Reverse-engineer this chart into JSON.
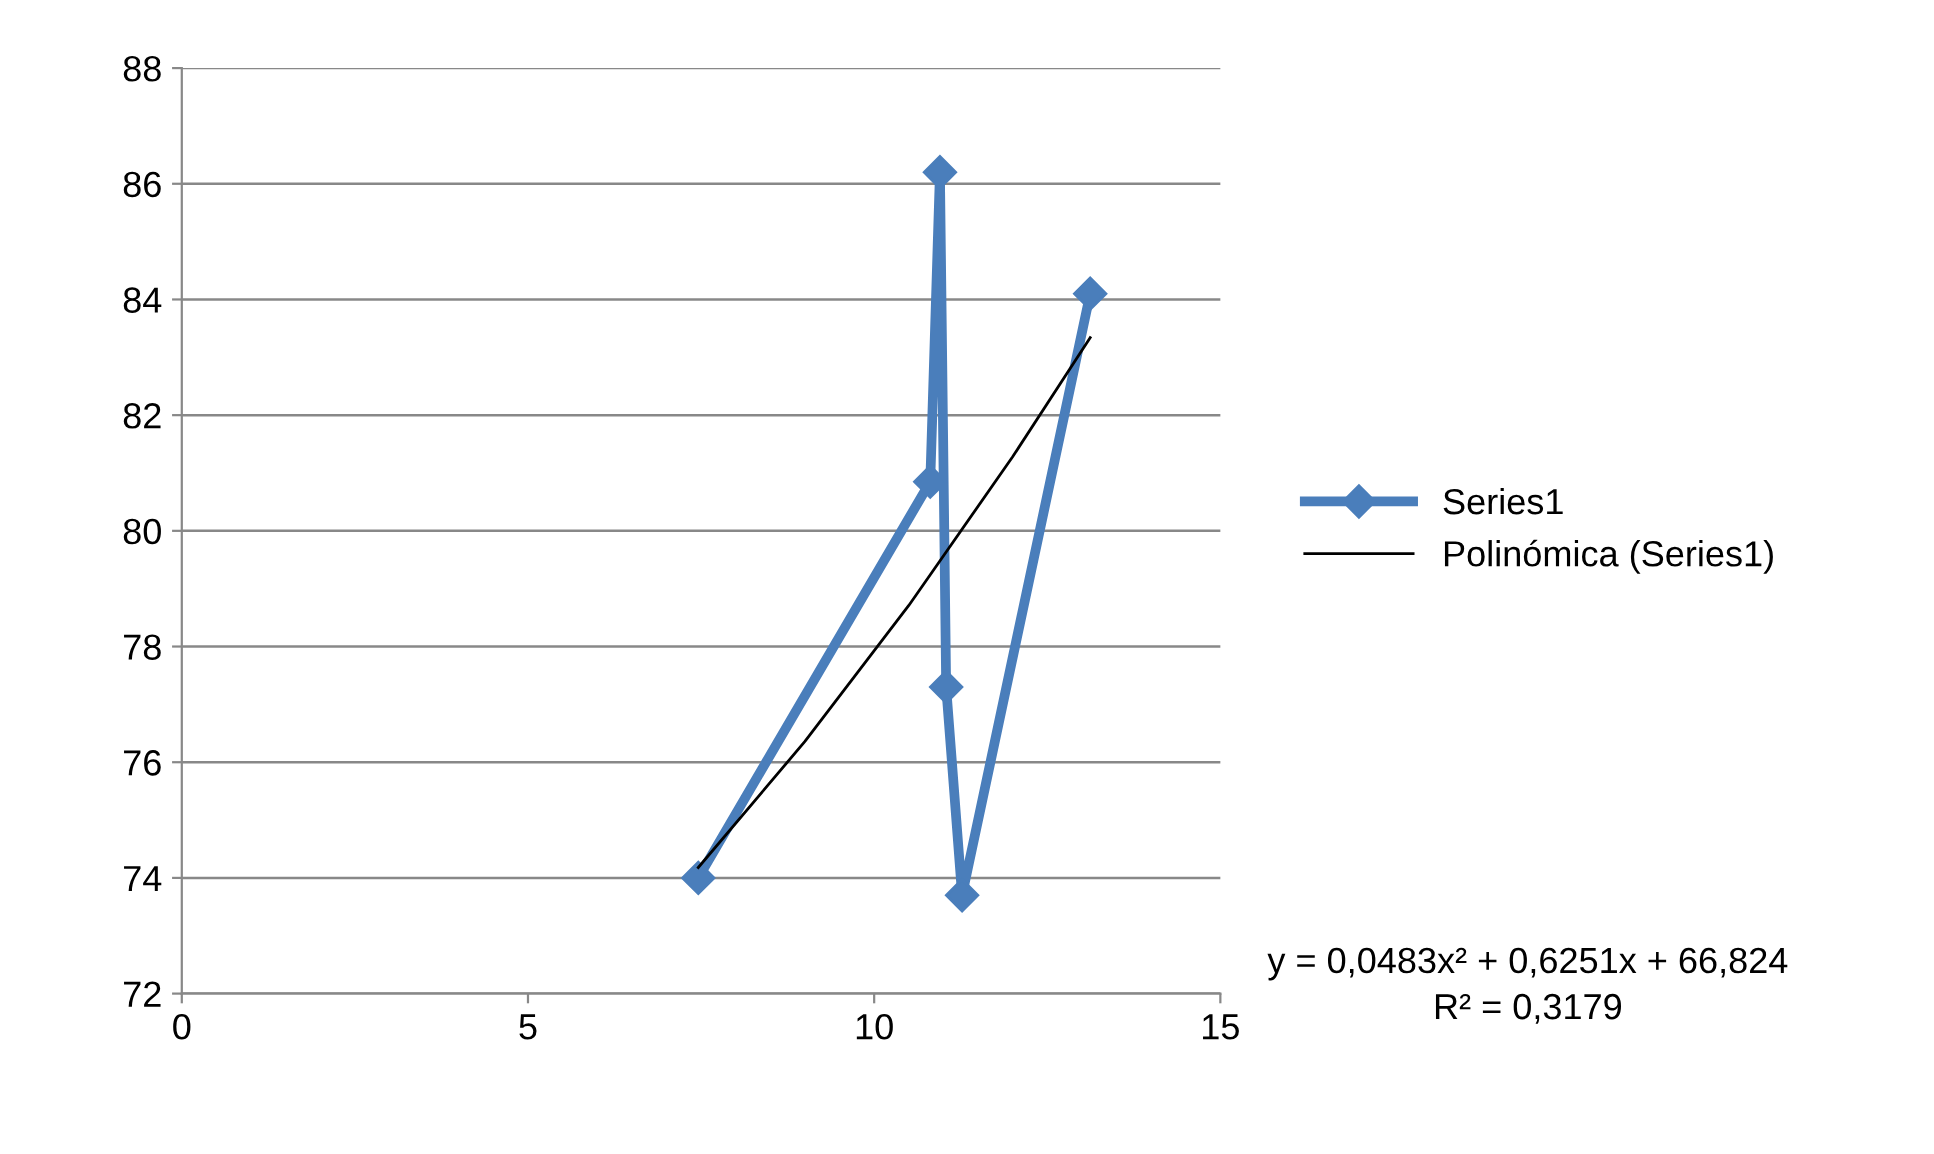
{
  "chart_data": {
    "type": "line",
    "series": [
      {
        "name": "Series1",
        "color": "#4a7ebb",
        "x": [
          7.46,
          10.81,
          10.95,
          11.04,
          11.27,
          13.12
        ],
        "values": [
          74.0,
          80.85,
          86.2,
          77.3,
          73.7,
          84.1
        ],
        "marker": "diamond",
        "line_style": "solid"
      },
      {
        "name": "Polinómica (Series1)",
        "color": "#000000",
        "x": [
          7.46,
          9,
          10.5,
          12,
          13.12
        ],
        "values": [
          74.18,
          76.36,
          78.71,
          81.28,
          83.34
        ],
        "marker": "none",
        "line_style": "solid"
      }
    ],
    "xlim": [
      0,
      15
    ],
    "xticks": [
      0,
      5,
      10,
      15
    ],
    "ylim": [
      72,
      88
    ],
    "yticks": [
      72,
      74,
      76,
      78,
      80,
      82,
      84,
      86,
      88
    ],
    "grid": "y",
    "legend": "right",
    "annotations": [
      "y = 0,0483x² + 0,6251x + 66,824",
      "R² = 0,3179"
    ]
  }
}
